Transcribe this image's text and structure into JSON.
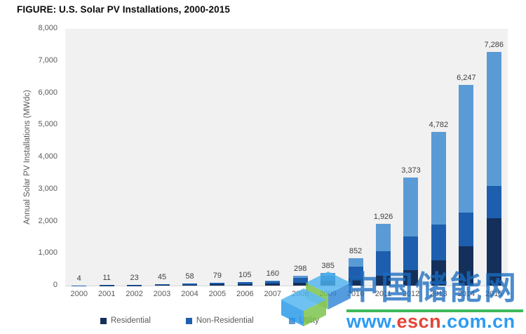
{
  "figure_title": "FIGURE: U.S. Solar PV Installations, 2000-2015",
  "y_axis": {
    "title": "Annual Solar PV Installations (MWdc)",
    "ticks": [
      "0",
      "1,000",
      "2,000",
      "3,000",
      "4,000",
      "5,000",
      "6,000",
      "7,000",
      "8,000"
    ]
  },
  "watermark": {
    "brand": "中国储能网",
    "url_prefix": "www.",
    "url_core": "escn",
    "url_suffix": ".com.cn",
    "brand_color": "#1b6cc0",
    "url_blue": "#2196f3",
    "url_red": "#e23b2e",
    "underline_green": "#2eb44d",
    "logo_name": "escn-cube-logo"
  },
  "chart_data": {
    "type": "bar",
    "stacked": true,
    "title": "U.S. Solar PV Installations, 2000-2015",
    "xlabel": "",
    "ylabel": "Annual Solar PV Installations (MWdc)",
    "ylim": [
      0,
      8000
    ],
    "ytick_interval": 1000,
    "grid": false,
    "legend_position": "bottom",
    "plot_background": "#f1f1f1",
    "categories": [
      "2000",
      "2001",
      "2002",
      "2003",
      "2004",
      "2005",
      "2006",
      "2007",
      "2008",
      "2009",
      "2010",
      "2011",
      "2012",
      "2013",
      "2014",
      "2015"
    ],
    "series": [
      {
        "name": "Residential",
        "color": "#14305a",
        "values": [
          2,
          5,
          10,
          20,
          25,
          33,
          43,
          60,
          78,
          156,
          246,
          298,
          488,
          792,
          1231,
          2099
        ]
      },
      {
        "name": "Non-Residential",
        "color": "#1d5fae",
        "values": [
          2,
          6,
          13,
          25,
          33,
          46,
          62,
          90,
          160,
          144,
          340,
          778,
          1043,
          1112,
          1036,
          1011
        ]
      },
      {
        "name": "Utility",
        "color": "#5b9bd5",
        "values": [
          0,
          0,
          0,
          0,
          0,
          0,
          0,
          10,
          60,
          85,
          266,
          850,
          1842,
          2878,
          3980,
          4176
        ]
      }
    ],
    "totals": [
      4,
      11,
      23,
      45,
      58,
      79,
      105,
      160,
      298,
      385,
      852,
      1926,
      3373,
      4782,
      6247,
      7286
    ],
    "total_labels": [
      "4",
      "11",
      "23",
      "45",
      "58",
      "79",
      "105",
      "160",
      "298",
      "385",
      "852",
      "1,926",
      "3,373",
      "4,782",
      "6,247",
      "7,286"
    ]
  }
}
